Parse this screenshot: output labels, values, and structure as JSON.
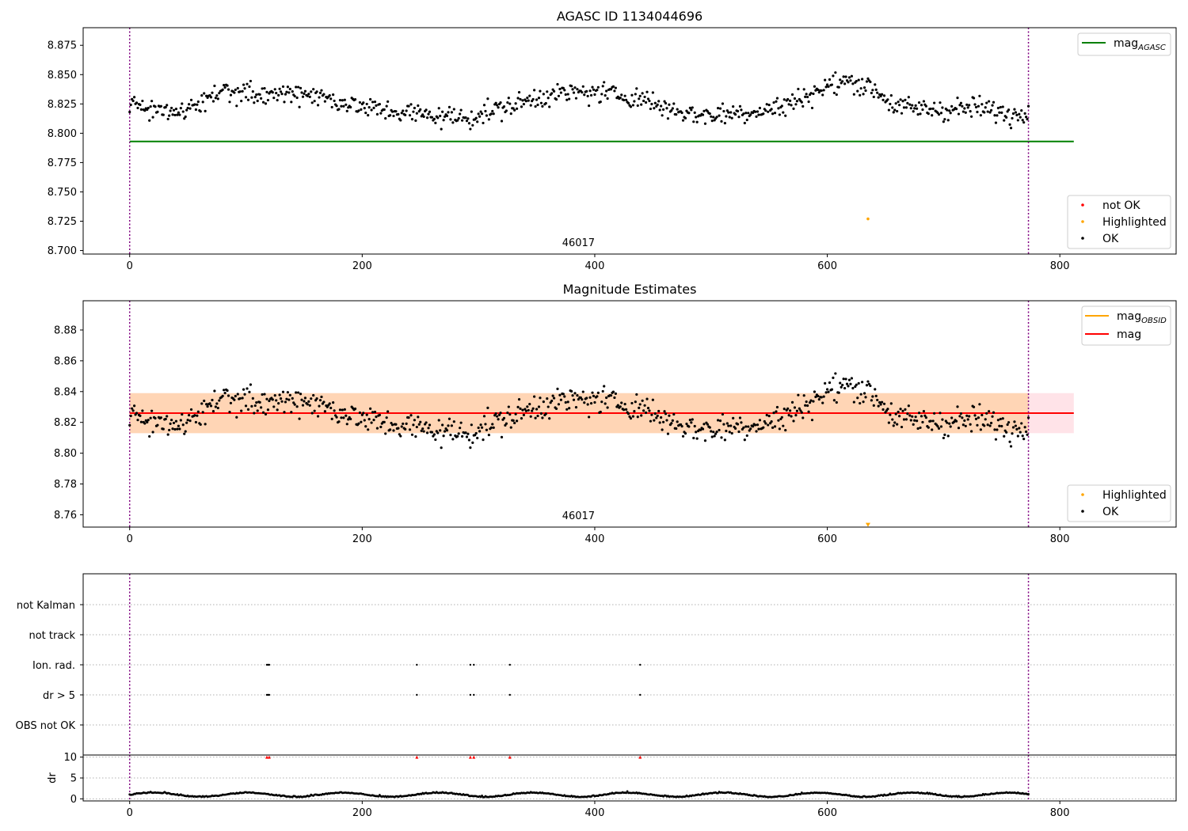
{
  "chart_data": [
    {
      "id": "agasc",
      "type": "scatter",
      "title": "AGASC ID 1134044696",
      "xlim": [
        -40,
        900
      ],
      "ylim": [
        8.697,
        8.89
      ],
      "xticks": [
        0,
        200,
        400,
        600,
        800
      ],
      "yticks": [
        8.7,
        8.725,
        8.75,
        8.775,
        8.8,
        8.825,
        8.85,
        8.875
      ],
      "ytick_labels": [
        "8.700",
        "8.725",
        "8.750",
        "8.775",
        "8.800",
        "8.825",
        "8.850",
        "8.875"
      ],
      "obsid_label": "46017",
      "obsid_x": 386,
      "obs_boundaries": [
        0,
        773
      ],
      "mag_agasc": 8.793,
      "mag_agasc_x": [
        0,
        812
      ],
      "highlighted_points": [
        {
          "x": 635,
          "y": 8.727
        }
      ],
      "legend_top": {
        "label": "mag",
        "sub": "AGASC",
        "color": "#008000"
      },
      "legend_bottom": [
        {
          "label": "not OK",
          "color": "#ff0000"
        },
        {
          "label": "Highlighted",
          "color": "#ffa500"
        },
        {
          "label": "OK",
          "color": "#000000"
        }
      ],
      "series_anchors": [
        [
          0,
          8.822
        ],
        [
          50,
          8.818
        ],
        [
          80,
          8.838
        ],
        [
          100,
          8.832
        ],
        [
          150,
          8.835
        ],
        [
          200,
          8.822
        ],
        [
          250,
          8.816
        ],
        [
          290,
          8.813
        ],
        [
          330,
          8.824
        ],
        [
          360,
          8.833
        ],
        [
          400,
          8.835
        ],
        [
          440,
          8.83
        ],
        [
          460,
          8.822
        ],
        [
          490,
          8.815
        ],
        [
          530,
          8.818
        ],
        [
          560,
          8.822
        ],
        [
          600,
          8.84
        ],
        [
          620,
          8.845
        ],
        [
          640,
          8.838
        ],
        [
          660,
          8.822
        ],
        [
          700,
          8.82
        ],
        [
          730,
          8.822
        ],
        [
          760,
          8.815
        ],
        [
          773,
          8.822
        ]
      ]
    },
    {
      "id": "mag_estimates",
      "type": "scatter",
      "title": "Magnitude Estimates",
      "xlim": [
        -40,
        900
      ],
      "ylim": [
        8.752,
        8.899
      ],
      "xticks": [
        0,
        200,
        400,
        600,
        800
      ],
      "yticks": [
        8.76,
        8.78,
        8.8,
        8.82,
        8.84,
        8.86,
        8.88
      ],
      "ytick_labels": [
        "8.76",
        "8.78",
        "8.80",
        "8.82",
        "8.84",
        "8.86",
        "8.88"
      ],
      "obsid_label": "46017",
      "obsid_x": 386,
      "obs_boundaries": [
        0,
        773
      ],
      "mag": 8.826,
      "mag_obsid": 8.826,
      "band_outer": [
        8.813,
        8.839
      ],
      "band_inner": [
        8.813,
        8.839
      ],
      "band_inner_x": [
        0,
        773
      ],
      "band_outer_x": [
        0,
        812
      ],
      "highlighted_points": [
        {
          "x": 635,
          "y": 8.7535
        }
      ],
      "legend_top": [
        {
          "label": "mag",
          "sub": "OBSID",
          "color": "#ffa500"
        },
        {
          "label": "mag",
          "sub": "",
          "color": "#ff0000"
        }
      ],
      "legend_bottom": [
        {
          "label": "Highlighted",
          "color": "#ffa500"
        },
        {
          "label": "OK",
          "color": "#000000"
        }
      ]
    },
    {
      "id": "flags",
      "type": "scatter",
      "xlim": [
        -40,
        900
      ],
      "categories": [
        "not Kalman",
        "not track",
        "Ion. rad.",
        "dr > 5",
        "OBS not OK"
      ],
      "obs_boundaries": [
        0,
        773
      ],
      "ion_rad_x": [
        118,
        119,
        120,
        247,
        293,
        296,
        327,
        439
      ],
      "dr5_x": [
        118,
        119,
        120,
        247,
        293,
        296,
        327,
        439
      ]
    },
    {
      "id": "dr",
      "type": "scatter",
      "xlim": [
        -40,
        900
      ],
      "ylim": [
        -0.5,
        10.5
      ],
      "ylabel": "dr",
      "xticks": [
        0,
        200,
        400,
        600,
        800
      ],
      "yticks": [
        0,
        5,
        10
      ],
      "obs_boundaries": [
        0,
        773
      ],
      "clipped_x": [
        118,
        120,
        247,
        293,
        296,
        327,
        439
      ],
      "clipped_value": 10
    }
  ]
}
